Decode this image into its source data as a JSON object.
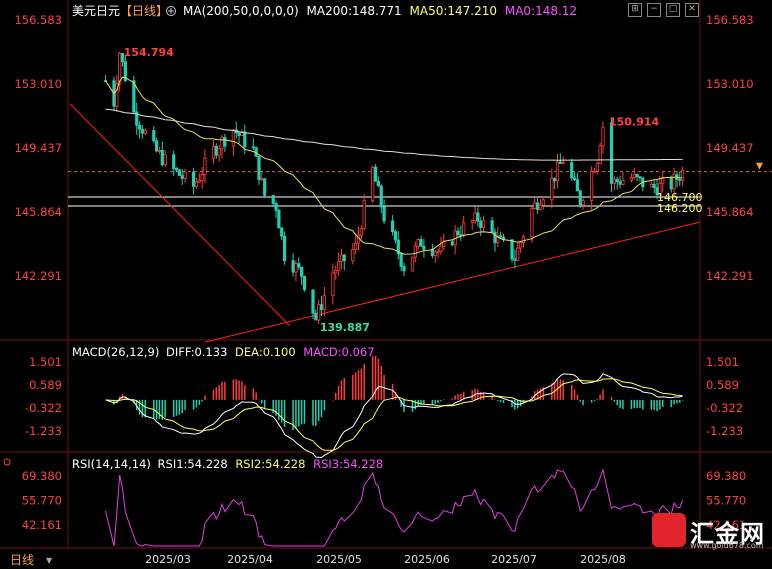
{
  "header": {
    "symbol": "美元日元",
    "period": "【日线】",
    "ma_label": "MA(200,50,0,0,0,0)",
    "ma200": "MA200:148.771",
    "ma50": "MA50:147.210",
    "ma0": "MA0:148.12"
  },
  "colors": {
    "bg": "#000000",
    "up": "#ff3b3b",
    "down": "#20d0b0",
    "ma200": "#e0e0e0",
    "ma50": "#e8e060",
    "trend": "#ff2020",
    "axis_text": "#ff4040",
    "magenta": "#e040e0"
  },
  "price_axis": {
    "ticks": [
      "156.583",
      "153.010",
      "149.437",
      "145.864",
      "142.291"
    ],
    "ymin": 138.5,
    "ymax": 157.2
  },
  "annotations": {
    "high1": "154.794",
    "high2": "150.914",
    "low": "139.887",
    "level1": "146.700",
    "level2": "146.200"
  },
  "macd": {
    "label": "MACD(26,12,9)",
    "diff": "DIFF:0.133",
    "dea": "DEA:0.100",
    "macd": "MACD:0.067",
    "ticks": [
      "1.501",
      "0.589",
      "-0.322",
      "-1.233"
    ]
  },
  "rsi": {
    "label": "RSI(14,14,14)",
    "rsi1": "RSI1:54.228",
    "rsi2": "RSI2:54.228",
    "rsi3": "RSI3:54.228",
    "ticks": [
      "69.380",
      "55.770",
      "42.161"
    ]
  },
  "x_axis": {
    "period_label": "日线",
    "labels": [
      "2025/03",
      "2025/04",
      "2025/05",
      "2025/06",
      "2025/07",
      "2025/08"
    ]
  },
  "watermark": {
    "text": "汇金网",
    "url": "www.gold678.com"
  },
  "chart_data": {
    "type": "candlestick",
    "price_ticks": [
      156.583,
      153.01,
      149.437,
      145.864,
      142.291
    ],
    "ylim": [
      138.5,
      157.2
    ],
    "points": [
      {
        "date": "2025/02/07",
        "close": 153.2
      },
      {
        "date": "2025/02/10",
        "close": 152.0
      },
      {
        "date": "2025/02/12",
        "close": 154.794
      },
      {
        "date": "2025/02/17",
        "close": 151.4
      },
      {
        "date": "2025/02/24",
        "close": 149.4
      },
      {
        "date": "2025/03/03",
        "close": 148.2
      },
      {
        "date": "2025/03/10",
        "close": 147.3
      },
      {
        "date": "2025/03/17",
        "close": 149.3
      },
      {
        "date": "2025/03/24",
        "close": 150.5
      },
      {
        "date": "2025/03/31",
        "close": 149.3
      },
      {
        "date": "2025/04/04",
        "close": 146.8
      },
      {
        "date": "2025/04/08",
        "close": 146.2
      },
      {
        "date": "2025/04/11",
        "close": 143.5
      },
      {
        "date": "2025/04/17",
        "close": 142.4
      },
      {
        "date": "2025/04/22",
        "close": 139.887
      },
      {
        "date": "2025/04/28",
        "close": 142.5
      },
      {
        "date": "2025/05/06",
        "close": 143.9
      },
      {
        "date": "2025/05/12",
        "close": 148.2
      },
      {
        "date": "2025/05/16",
        "close": 145.6
      },
      {
        "date": "2025/05/23",
        "close": 142.8
      },
      {
        "date": "2025/05/29",
        "close": 144.2
      },
      {
        "date": "2025/06/05",
        "close": 143.6
      },
      {
        "date": "2025/06/11",
        "close": 144.8
      },
      {
        "date": "2025/06/18",
        "close": 145.5
      },
      {
        "date": "2025/06/25",
        "close": 144.3
      },
      {
        "date": "2025/07/01",
        "close": 143.3
      },
      {
        "date": "2025/07/07",
        "close": 146.0
      },
      {
        "date": "2025/07/14",
        "close": 147.6
      },
      {
        "date": "2025/07/18",
        "close": 148.8
      },
      {
        "date": "2025/07/24",
        "close": 146.5
      },
      {
        "date": "2025/07/30",
        "close": 148.9
      },
      {
        "date": "2025/08/01",
        "close": 150.914
      },
      {
        "date": "2025/08/04",
        "close": 147.5
      },
      {
        "date": "2025/08/11",
        "close": 147.8
      },
      {
        "date": "2025/08/18",
        "close": 147.2
      },
      {
        "date": "2025/08/25",
        "close": 147.4
      },
      {
        "date": "2025/08/29",
        "close": 148.12
      }
    ],
    "ma200_value": 148.771,
    "ma50_value": 147.21,
    "ma0_value": 148.12,
    "support_levels": [
      146.7,
      146.2
    ],
    "macd": {
      "diff": 0.133,
      "dea": 0.1,
      "macd": 0.067,
      "ticks": [
        1.501,
        0.589,
        -0.322,
        -1.233
      ]
    },
    "rsi": {
      "rsi1": 54.228,
      "rsi2": 54.228,
      "rsi3": 54.228,
      "ticks": [
        69.38,
        55.77,
        42.161
      ]
    },
    "x_labels": [
      "2025/03",
      "2025/04",
      "2025/05",
      "2025/06",
      "2025/07",
      "2025/08"
    ],
    "grid": false
  }
}
